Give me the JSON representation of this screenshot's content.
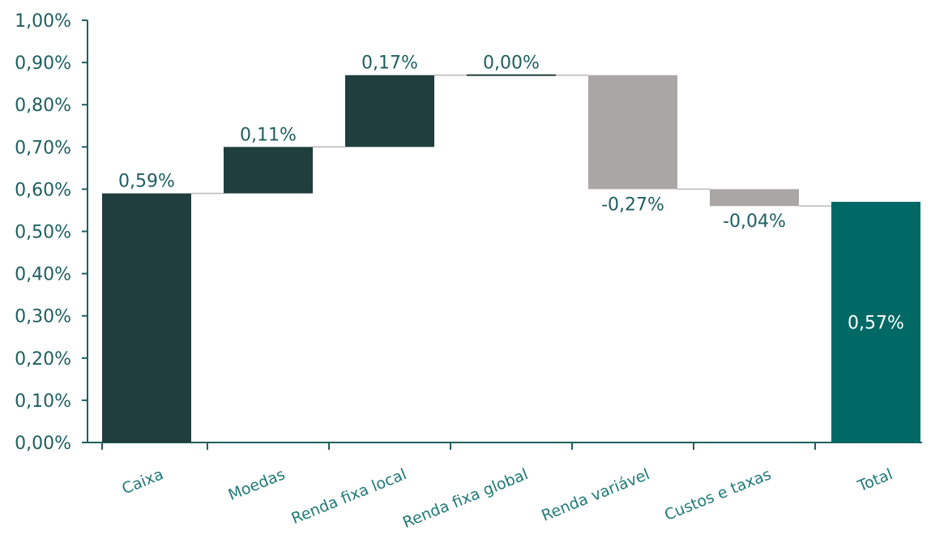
{
  "chart_data": {
    "type": "bar",
    "subtype": "waterfall",
    "categories": [
      "Caixa",
      "Moedas",
      "Renda fixa local",
      "Renda fixa global",
      "Renda variável",
      "Custos e taxas",
      "Total"
    ],
    "values": [
      0.59,
      0.11,
      0.17,
      0.0,
      -0.27,
      -0.04,
      0.57
    ],
    "data_labels": [
      "0,59%",
      "0,11%",
      "0,17%",
      "0,00%",
      "-0,27%",
      "-0,04%",
      "0,57%"
    ],
    "ylim": [
      0,
      1.0
    ],
    "yticks": [
      {
        "value": 0.0,
        "label": "0,00%"
      },
      {
        "value": 0.1,
        "label": "0,10%"
      },
      {
        "value": 0.2,
        "label": "0,20%"
      },
      {
        "value": 0.3,
        "label": "0,30%"
      },
      {
        "value": 0.4,
        "label": "0,40%"
      },
      {
        "value": 0.5,
        "label": "0,50%"
      },
      {
        "value": 0.6,
        "label": "0,60%"
      },
      {
        "value": 0.7,
        "label": "0,70%"
      },
      {
        "value": 0.8,
        "label": "0,80%"
      },
      {
        "value": 0.9,
        "label": "0,90%"
      },
      {
        "value": 1.0,
        "label": "1,00%"
      }
    ],
    "grid": false,
    "colors": {
      "positive": "#1f3e3d",
      "negative": "#aaa6a5",
      "total": "#006966",
      "axis": "#1f5f60",
      "connector": "#b9b9b9",
      "label_text": "#1f5f60",
      "total_label": "#ffffff"
    }
  }
}
